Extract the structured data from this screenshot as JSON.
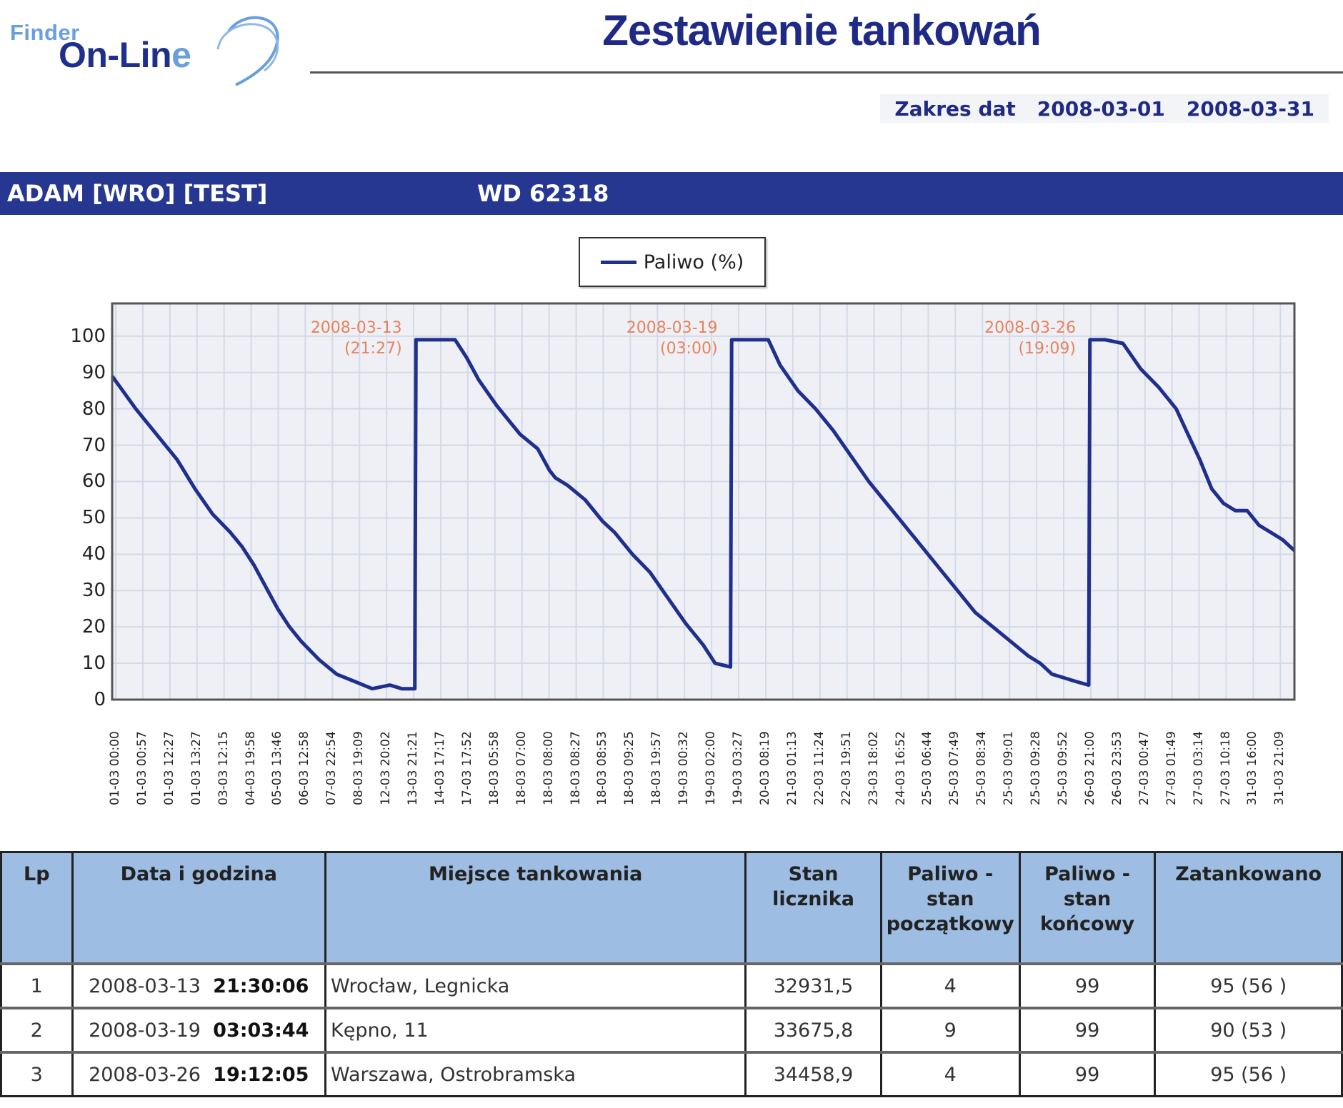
{
  "logo": {
    "word1": "Finder",
    "word2_main": "On-Lin",
    "word2_end": "e"
  },
  "header": {
    "title": "Zestawienie tankowań",
    "date_range_label": "Zakres dat",
    "date_from": "2008-03-01",
    "date_to": "2008-03-31"
  },
  "vehicle_band": {
    "driver": "ADAM [WRO] [TEST]",
    "plate": "WD 62318"
  },
  "colors": {
    "band": "#263792",
    "line": "#1f2f8e",
    "annotation": "#e8825b",
    "table_header": "#9dbde3",
    "plot_bg": "#eef0f6"
  },
  "chart_data": {
    "type": "line",
    "title": "",
    "legend": [
      "Paliwo (%)"
    ],
    "legend_position": "top-center",
    "xlabel": "",
    "ylabel": "",
    "ylim": [
      0,
      109
    ],
    "yticks": [
      0,
      10,
      20,
      30,
      40,
      50,
      60,
      70,
      80,
      90,
      100
    ],
    "grid": true,
    "xtick_labels": [
      "01-03 00:00",
      "01-03 00:57",
      "01-03 12:27",
      "01-03 13:27",
      "03-03 12:15",
      "04-03 19:58",
      "05-03 13:46",
      "06-03 12:58",
      "07-03 22:54",
      "08-03 19:09",
      "12-03 20:02",
      "13-03 21:21",
      "14-03 17:17",
      "17-03 17:52",
      "18-03 05:58",
      "18-03 07:00",
      "18-03 08:00",
      "18-03 08:27",
      "18-03 08:53",
      "18-03 09:25",
      "18-03 19:57",
      "19-03 00:32",
      "19-03 02:00",
      "19-03 03:27",
      "20-03 08:19",
      "21-03 01:13",
      "22-03 11:24",
      "22-03 19:51",
      "23-03 18:02",
      "24-03 16:52",
      "25-03 06:44",
      "25-03 07:49",
      "25-03 08:34",
      "25-03 09:01",
      "25-03 09:28",
      "25-03 09:52",
      "26-03 21:00",
      "26-03 23:53",
      "27-03 00:47",
      "27-03 01:49",
      "27-03 03:14",
      "27-03 10:18",
      "31-03 16:00",
      "31-03 21:09"
    ],
    "annotations": [
      {
        "date": "2008-03-13",
        "time": "(21:27)"
      },
      {
        "date": "2008-03-19",
        "time": "(03:00)"
      },
      {
        "date": "2008-03-26",
        "time": "(19:09)"
      }
    ],
    "series": [
      {
        "name": "Paliwo (%)",
        "x": [
          0.0,
          0.02,
          0.04,
          0.055,
          0.07,
          0.085,
          0.1,
          0.11,
          0.12,
          0.13,
          0.14,
          0.15,
          0.16,
          0.175,
          0.19,
          0.205,
          0.22,
          0.235,
          0.245,
          0.256,
          0.257,
          0.275,
          0.29,
          0.3,
          0.31,
          0.325,
          0.335,
          0.345,
          0.36,
          0.37,
          0.375,
          0.385,
          0.4,
          0.415,
          0.425,
          0.44,
          0.455,
          0.47,
          0.485,
          0.5,
          0.51,
          0.523,
          0.524,
          0.54,
          0.555,
          0.565,
          0.58,
          0.595,
          0.61,
          0.625,
          0.64,
          0.655,
          0.67,
          0.685,
          0.7,
          0.715,
          0.73,
          0.745,
          0.76,
          0.775,
          0.785,
          0.795,
          0.805,
          0.815,
          0.826,
          0.827,
          0.84,
          0.855,
          0.87,
          0.885,
          0.9,
          0.91,
          0.92,
          0.93,
          0.94,
          0.95,
          0.96,
          0.97,
          0.98,
          0.99,
          1.0
        ],
        "y": [
          89,
          80,
          72,
          66,
          58,
          51,
          46,
          42,
          37,
          31,
          25,
          20,
          16,
          11,
          7,
          5,
          3,
          4,
          3,
          3,
          99,
          99,
          99,
          94,
          88,
          81,
          77,
          73,
          69,
          63,
          61,
          59,
          55,
          49,
          46,
          40,
          35,
          28,
          21,
          15,
          10,
          9,
          99,
          99,
          99,
          92,
          85,
          80,
          74,
          67,
          60,
          54,
          48,
          42,
          36,
          30,
          24,
          20,
          16,
          12,
          10,
          7,
          6,
          5,
          4,
          99,
          99,
          98,
          91,
          86,
          80,
          73,
          66,
          58,
          54,
          52,
          52,
          48,
          46,
          44,
          41
        ]
      }
    ]
  },
  "table": {
    "headers": [
      "Lp",
      "Data i godzina",
      "Miejsce tankowania",
      "Stan licznika",
      "Paliwo - stan początkowy",
      "Paliwo - stan końcowy",
      "Zatankowano"
    ],
    "rows": [
      {
        "lp": "1",
        "date": "2008-03-13",
        "time": "21:30:06",
        "place": "Wrocław, Legnicka",
        "odometer": "32931,5",
        "fuel_start": "4",
        "fuel_end": "99",
        "refueled": "95 (56 )"
      },
      {
        "lp": "2",
        "date": "2008-03-19",
        "time": "03:03:44",
        "place": "Kępno, 11",
        "odometer": "33675,8",
        "fuel_start": "9",
        "fuel_end": "99",
        "refueled": "90 (53 )"
      },
      {
        "lp": "3",
        "date": "2008-03-26",
        "time": "19:12:05",
        "place": "Warszawa, Ostrobramska",
        "odometer": "34458,9",
        "fuel_start": "4",
        "fuel_end": "99",
        "refueled": "95 (56 )"
      }
    ]
  }
}
